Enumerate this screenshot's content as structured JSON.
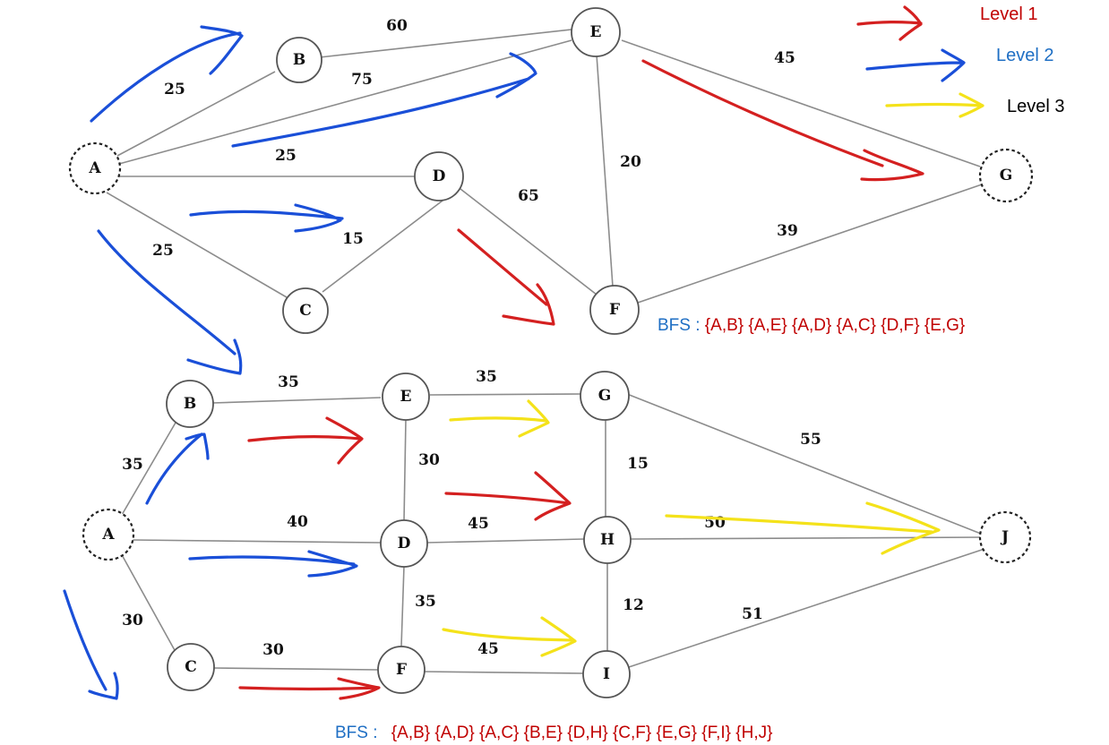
{
  "legend": {
    "level1": {
      "label": "Level 1",
      "color": "#c00000"
    },
    "level2": {
      "label": "Level 2",
      "color": "#1f6fc4"
    },
    "level3": {
      "label": "Level 3",
      "color": "#000000"
    }
  },
  "colors": {
    "red": "#d42020",
    "blue": "#1a4fd8",
    "yellow": "#f4e21a",
    "bfs_prefix": "#1f6fc4",
    "bfs_sequence": "#c00000"
  },
  "graph1": {
    "nodes": [
      "A",
      "B",
      "C",
      "D",
      "E",
      "F",
      "G"
    ],
    "weights": [
      "60",
      "75",
      "25",
      "45",
      "20",
      "25",
      "65",
      "15",
      "25",
      "39"
    ],
    "bfs": {
      "prefix": "BFS : ",
      "sequence": "{A,B} {A,E} {A,D} {A,C} {D,F} {E,G}"
    }
  },
  "graph2": {
    "nodes": [
      "A",
      "B",
      "C",
      "D",
      "E",
      "F",
      "G",
      "H",
      "I",
      "J"
    ],
    "weights": [
      "35",
      "35",
      "35",
      "55",
      "30",
      "15",
      "40",
      "45",
      "50",
      "35",
      "12",
      "51",
      "30",
      "45",
      "30"
    ],
    "bfs": {
      "prefix": "BFS : ",
      "sequence": "{A,B} {A,D} {A,C} {B,E} {D,H} {C,F} {E,G} {F,I} {H,J}"
    }
  }
}
